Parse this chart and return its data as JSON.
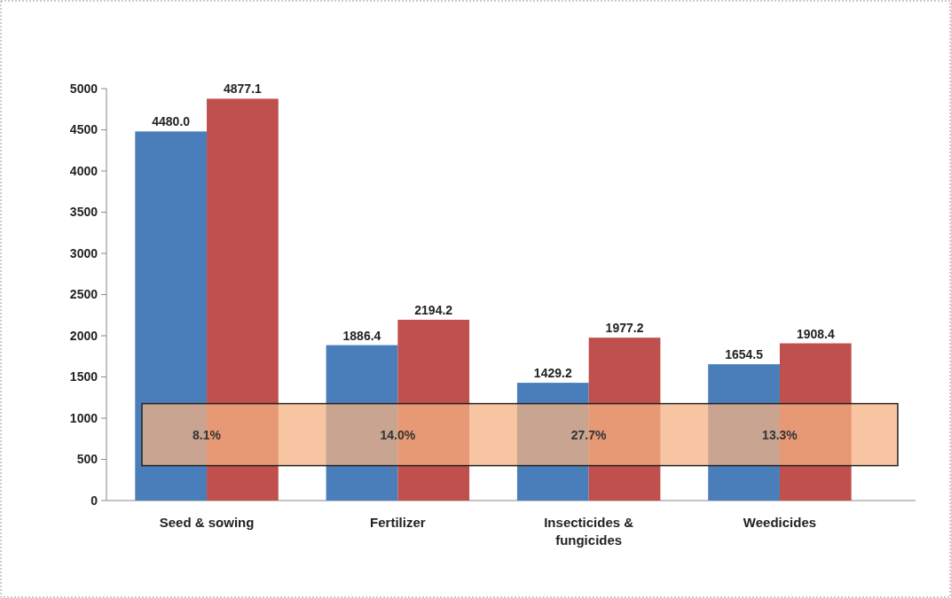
{
  "chart_data": {
    "type": "bar",
    "categories": [
      "Seed & sowing",
      "Fertilizer",
      "Insecticides & fungicides",
      "Weedicides"
    ],
    "series": [
      {
        "color": "#4a7ebb",
        "values": [
          4480.0,
          1886.4,
          1429.2,
          1654.5
        ],
        "value_labels": [
          "4480.0",
          "1886.4",
          "1429.2",
          "1654.5"
        ]
      },
      {
        "color": "#c0504d",
        "values": [
          4877.1,
          2194.2,
          1977.2,
          1908.4
        ],
        "value_labels": [
          "4877.1",
          "2194.2",
          "1977.2",
          "1908.4"
        ]
      }
    ],
    "ylim": [
      0,
      5000
    ],
    "yticks": [
      0,
      500,
      1000,
      1500,
      2000,
      2500,
      3000,
      3500,
      4000,
      4500,
      5000
    ],
    "grid": false,
    "annotations": [
      {
        "text": "8.1%",
        "x": "Seed & sowing",
        "y": 800
      },
      {
        "text": "14.0%",
        "x": "Fertilizer",
        "y": 800
      },
      {
        "text": "27.7%",
        "x": "Insecticides & fungicides",
        "y": 800
      },
      {
        "text": "13.3%",
        "x": "Weedicides",
        "y": 800
      }
    ]
  }
}
